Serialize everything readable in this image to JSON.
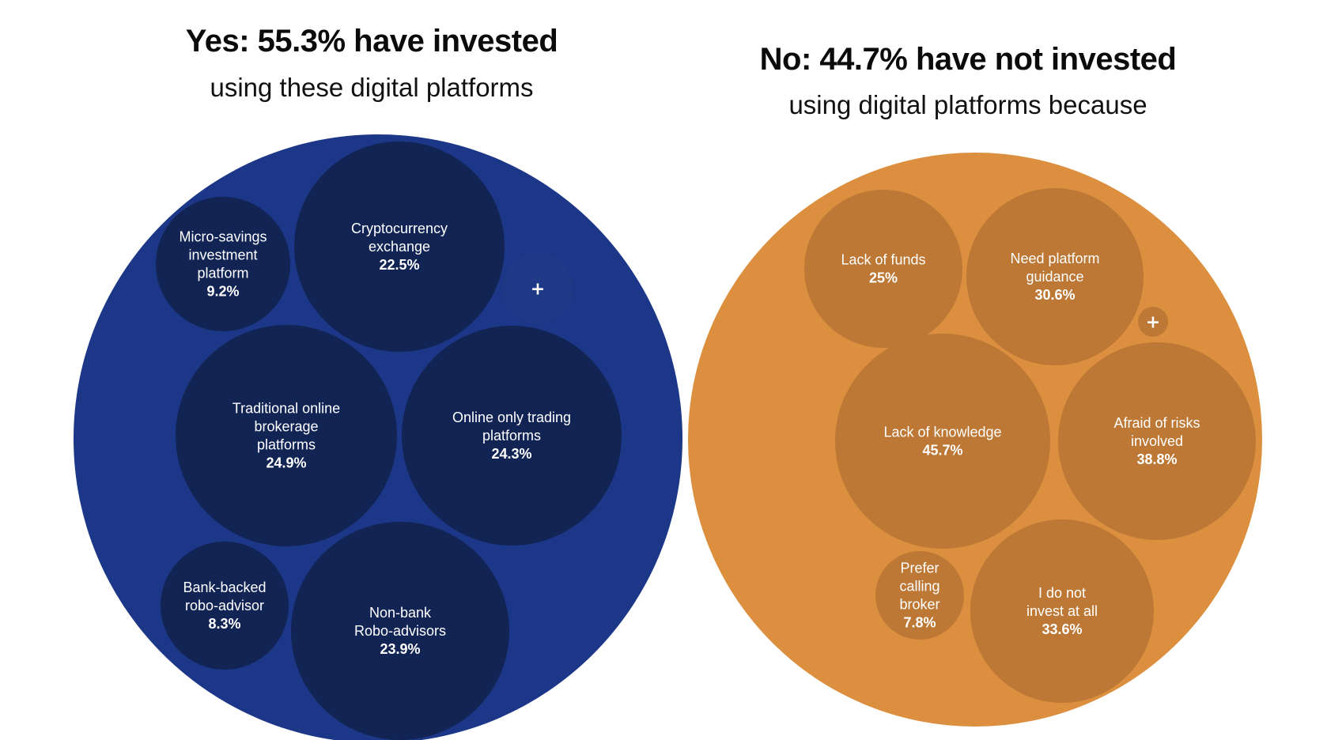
{
  "panels": {
    "yes": {
      "title": "Yes: 55.3% have invested",
      "subtitle": "using these digital platforms"
    },
    "no": {
      "title": "No: 44.7% have not invested",
      "subtitle": "using digital platforms because"
    }
  },
  "colors": {
    "yes_outer": "#1c3787",
    "yes_bubble": "#122454",
    "yes_more": "#1e3a86",
    "no_outer": "#db8f3f",
    "no_bubble": "#bc7834",
    "no_more": "#bc7834"
  },
  "chart_data": [
    {
      "type": "bubble",
      "name": "yes",
      "title": "Yes: 55.3% have invested",
      "subtitle": "using these digital platforms",
      "total_percent": 55.3,
      "more_indicator": "+",
      "series": [
        {
          "id": "micro-savings",
          "name": "Micro-savings investment platform",
          "lines": [
            "Micro-savings",
            "investment",
            "platform"
          ],
          "value": 9.2,
          "value_label": "9.2%"
        },
        {
          "id": "cryptocurrency",
          "name": "Cryptocurrency exchange",
          "lines": [
            "Cryptocurrency",
            "exchange"
          ],
          "value": 22.5,
          "value_label": "22.5%"
        },
        {
          "id": "traditional-online",
          "name": "Traditional online brokerage platforms",
          "lines": [
            "Traditional online",
            "brokerage",
            "platforms"
          ],
          "value": 24.9,
          "value_label": "24.9%"
        },
        {
          "id": "online-only",
          "name": "Online only trading platforms",
          "lines": [
            "Online only trading",
            "platforms"
          ],
          "value": 24.3,
          "value_label": "24.3%"
        },
        {
          "id": "bank-backed",
          "name": "Bank-backed robo-advisor",
          "lines": [
            "Bank-backed",
            "robo-advisor"
          ],
          "value": 8.3,
          "value_label": "8.3%"
        },
        {
          "id": "non-bank",
          "name": "Non-bank Robo-advisors",
          "lines": [
            "Non-bank",
            "Robo-advisors"
          ],
          "value": 23.9,
          "value_label": "23.9%"
        }
      ]
    },
    {
      "type": "bubble",
      "name": "no",
      "title": "No: 44.7% have not invested",
      "subtitle": "using digital platforms because",
      "total_percent": 44.7,
      "more_indicator": "+",
      "series": [
        {
          "id": "lack-of-funds",
          "name": "Lack of funds",
          "lines": [
            "Lack of funds"
          ],
          "value": 25,
          "value_label": "25%"
        },
        {
          "id": "need-guidance",
          "name": "Need platform guidance",
          "lines": [
            "Need platform",
            "guidance"
          ],
          "value": 30.6,
          "value_label": "30.6%"
        },
        {
          "id": "lack-of-knowledge",
          "name": "Lack of knowledge",
          "lines": [
            "Lack of knowledge"
          ],
          "value": 45.7,
          "value_label": "45.7%"
        },
        {
          "id": "afraid-of-risks",
          "name": "Afraid of risks involved",
          "lines": [
            "Afraid of risks",
            "involved"
          ],
          "value": 38.8,
          "value_label": "38.8%"
        },
        {
          "id": "prefer-calling",
          "name": "Prefer calling broker",
          "lines": [
            "Prefer",
            "calling",
            "broker"
          ],
          "value": 7.8,
          "value_label": "7.8%"
        },
        {
          "id": "do-not-invest",
          "name": "I do not invest at all",
          "lines": [
            "I do not",
            "invest at all"
          ],
          "value": 33.6,
          "value_label": "33.6%"
        }
      ]
    }
  ]
}
